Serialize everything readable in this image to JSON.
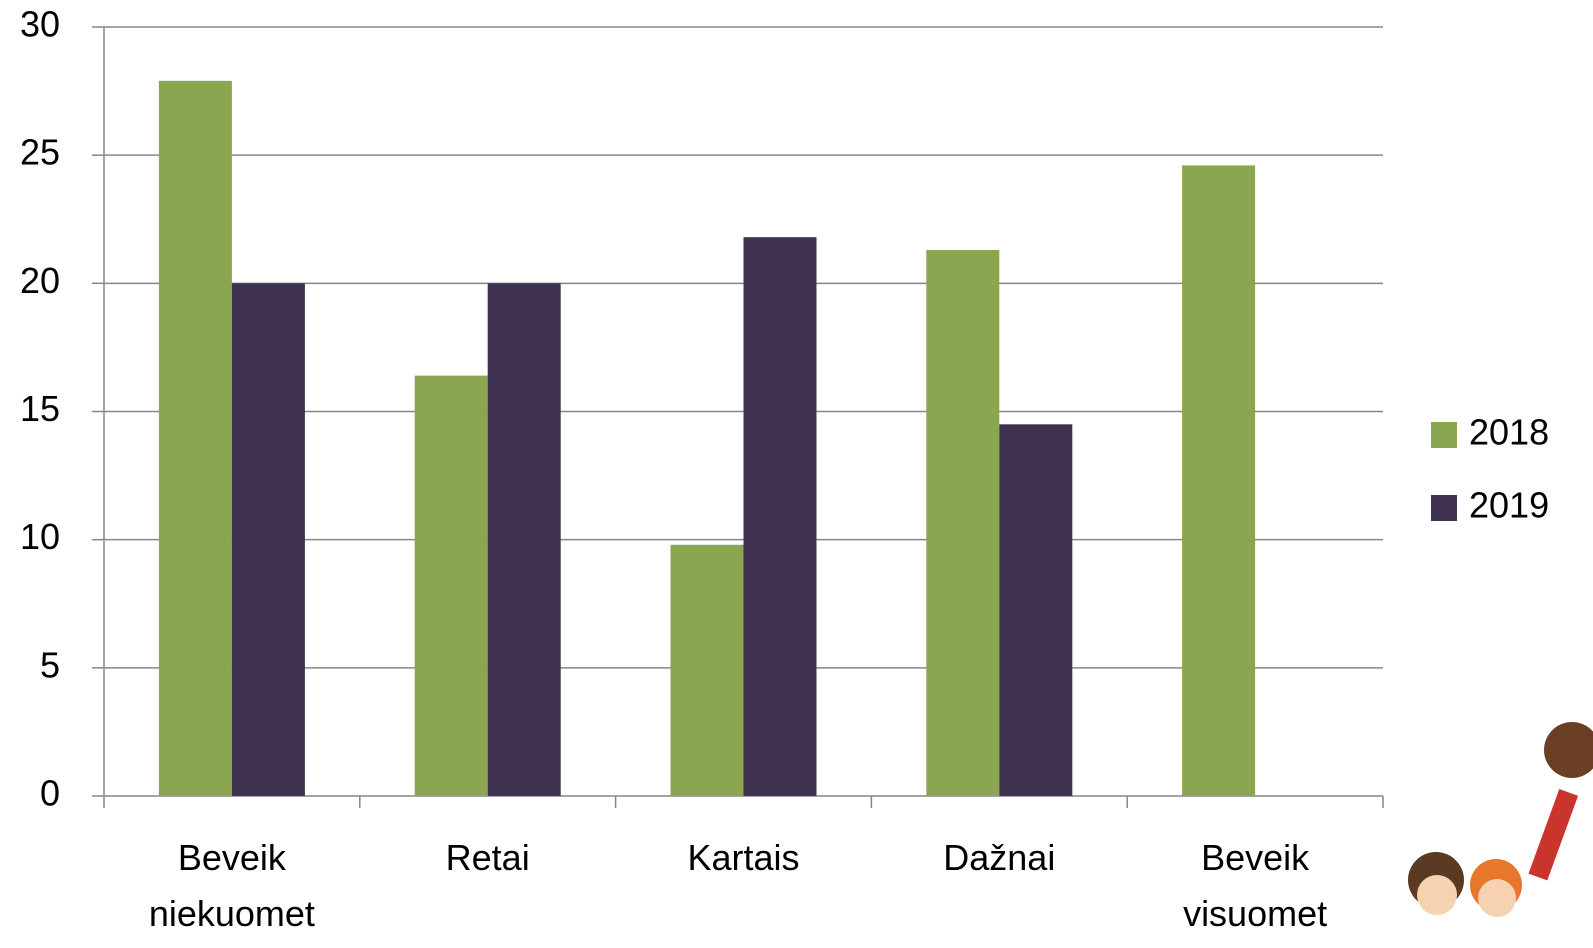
{
  "chart_data": {
    "type": "bar",
    "categories": [
      "Beveik niekuomet",
      "Retai",
      "Kartais",
      "Dažnai",
      "Beveik visuomet"
    ],
    "series": [
      {
        "name": "2018",
        "color": "#8aa650",
        "values": [
          27.9,
          16.4,
          9.8,
          21.3,
          24.6
        ]
      },
      {
        "name": "2019",
        "color": "#3f3150",
        "values": [
          20,
          20,
          21.8,
          14.5,
          null
        ]
      }
    ],
    "ylim": [
      0,
      30
    ],
    "yticks": [
      0,
      5,
      10,
      15,
      20,
      25,
      30
    ],
    "grid": true,
    "legend": "right"
  }
}
